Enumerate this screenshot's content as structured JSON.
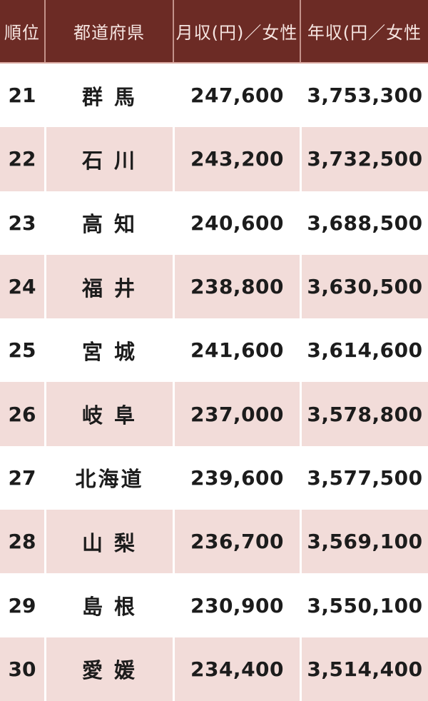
{
  "table": {
    "headers": {
      "rank": "順位",
      "prefecture": "都道府県",
      "monthly": "月収(円)／女性",
      "annual": "年収(円／女性"
    },
    "rows": [
      {
        "rank": "21",
        "prefecture": "群 馬",
        "monthly": "247,600",
        "annual": "3,753,300"
      },
      {
        "rank": "22",
        "prefecture": "石 川",
        "monthly": "243,200",
        "annual": "3,732,500"
      },
      {
        "rank": "23",
        "prefecture": "高 知",
        "monthly": "240,600",
        "annual": "3,688,500"
      },
      {
        "rank": "24",
        "prefecture": "福 井",
        "monthly": "238,800",
        "annual": "3,630,500"
      },
      {
        "rank": "25",
        "prefecture": "宮 城",
        "monthly": "241,600",
        "annual": "3,614,600"
      },
      {
        "rank": "26",
        "prefecture": "岐 阜",
        "monthly": "237,000",
        "annual": "3,578,800"
      },
      {
        "rank": "27",
        "prefecture": "北海道",
        "monthly": "239,600",
        "annual": "3,577,500"
      },
      {
        "rank": "28",
        "prefecture": "山 梨",
        "monthly": "236,700",
        "annual": "3,569,100"
      },
      {
        "rank": "29",
        "prefecture": "島 根",
        "monthly": "230,900",
        "annual": "3,550,100"
      },
      {
        "rank": "30",
        "prefecture": "愛 媛",
        "monthly": "234,400",
        "annual": "3,514,400"
      }
    ]
  },
  "colors": {
    "header_bg": "#6C2B25",
    "header_text": "#F6E5E1",
    "header_divider": "#C3928A",
    "header_bottom_border": "#D9A8A0",
    "row_bg": "#FFFFFF",
    "row_alt_bg": "#F2DCD9",
    "row_divider": "#FFFFFF",
    "body_text": "#1C1C1C"
  },
  "chart_data": {
    "type": "table",
    "title": "都道府県別 女性の月収・年収ランキング (21位〜30位)",
    "columns": [
      "順位",
      "都道府県",
      "月収(円)／女性",
      "年収(円／女性"
    ],
    "rows": [
      [
        21,
        "群馬",
        247600,
        3753300
      ],
      [
        22,
        "石川",
        243200,
        3732500
      ],
      [
        23,
        "高知",
        240600,
        3688500
      ],
      [
        24,
        "福井",
        238800,
        3630500
      ],
      [
        25,
        "宮城",
        241600,
        3614600
      ],
      [
        26,
        "岐阜",
        237000,
        3578800
      ],
      [
        27,
        "北海道",
        239600,
        3577500
      ],
      [
        28,
        "山梨",
        236700,
        3569100
      ],
      [
        29,
        "島根",
        230900,
        3550100
      ],
      [
        30,
        "愛媛",
        234400,
        3514400
      ]
    ]
  }
}
